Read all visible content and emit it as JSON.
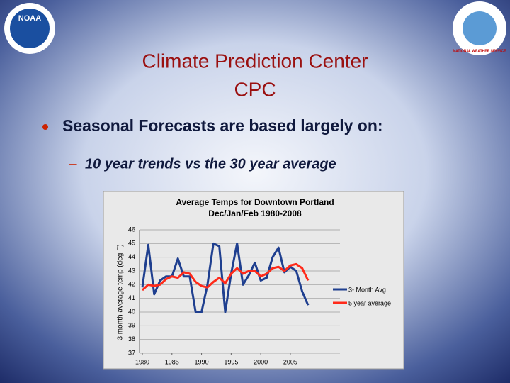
{
  "slide": {
    "title_line1": "Climate Prediction Center",
    "title_line2": "CPC",
    "bullet": "Seasonal Forecasts are based largely on:",
    "sub_bullet": "10 year trends vs the 30 year average",
    "logo_left": "NOAA",
    "logo_right": "NATIONAL WEATHER SERVICE"
  },
  "chart_data": {
    "type": "line",
    "title": "Average Temps for Downtown Portland",
    "subtitle": "Dec/Jan/Feb 1980-2008",
    "y_label": "3 month average temp (deg F)",
    "x": [
      1980,
      1981,
      1982,
      1983,
      1984,
      1985,
      1986,
      1987,
      1988,
      1989,
      1990,
      1991,
      1992,
      1993,
      1994,
      1995,
      1996,
      1997,
      1998,
      1999,
      2000,
      2001,
      2002,
      2003,
      2004,
      2005,
      2006,
      2007,
      2008
    ],
    "series": [
      {
        "name": "3- Month Avg",
        "color": "#1f3f8f",
        "values": [
          41.8,
          44.9,
          41.3,
          42.3,
          42.6,
          42.6,
          43.9,
          42.6,
          42.6,
          40.0,
          40.0,
          42.0,
          45.0,
          44.8,
          40.0,
          42.8,
          45.0,
          42.0,
          42.7,
          43.6,
          42.3,
          42.5,
          44.0,
          44.7,
          42.9,
          43.3,
          43.0,
          41.5,
          40.5
        ]
      },
      {
        "name": "5 year average",
        "color": "#ff2a1a",
        "values": [
          41.6,
          42.0,
          41.9,
          42.0,
          42.4,
          42.6,
          42.5,
          42.9,
          42.8,
          42.2,
          41.9,
          41.8,
          42.2,
          42.5,
          42.1,
          42.8,
          43.2,
          42.8,
          43.0,
          43.0,
          42.6,
          42.8,
          43.2,
          43.3,
          43.0,
          43.4,
          43.5,
          43.2,
          42.3
        ]
      }
    ],
    "xlim": [
      1980,
      2008
    ],
    "xticks": [
      1980,
      1985,
      1990,
      1995,
      2000,
      2005
    ],
    "ylim": [
      37,
      46
    ],
    "yticks": [
      37,
      38,
      39,
      40,
      41,
      42,
      43,
      44,
      45,
      46
    ],
    "grid": true
  }
}
